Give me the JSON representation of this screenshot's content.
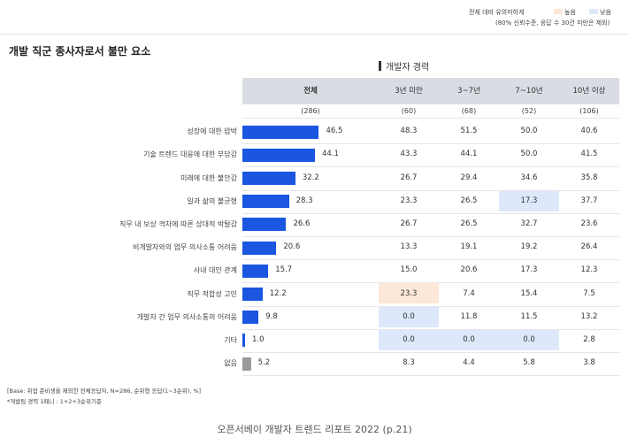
{
  "legend": {
    "prefix": "전체 대비 유의미하게",
    "high_label": "높음",
    "low_label": "낮음",
    "note": "(80% 신뢰수준, 응답 수 30건 미만은 제외)",
    "high_color": "#fde7d8",
    "low_color": "#dde8fb"
  },
  "title": "개발 직군 종사자로서 불만 요소",
  "group_label": "개발자 경력",
  "footnotes": [
    "[Base: 취업 준비생을 제외한 전체응답자, N=286, 순위형 응답(1~3순위), %]",
    "*개발팀 경력 1패니 : 1+2+3순위기준"
  ],
  "source": "오픈서베이 개발자 트렌드 리포트 2022 (p.21)",
  "chart_data": {
    "type": "bar",
    "orientation": "horizontal",
    "bar_color": "#1a56e0",
    "other_bar_color": "#9a9a9a",
    "columns": [
      {
        "label": "전체",
        "n": "(286)"
      },
      {
        "label": "3년 미만",
        "n": "(60)"
      },
      {
        "label": "3~7년",
        "n": "(68)"
      },
      {
        "label": "7~10년",
        "n": "(52)"
      },
      {
        "label": "10년 이상",
        "n": "(106)"
      }
    ],
    "categories": [
      "성장에 대한 압박",
      "기술 트렌드 대응에 대한 부담감",
      "미래에 대한 불안감",
      "일과 삶의 불균형",
      "직무 내 보상 격차에 따른 상대적 박탈감",
      "비개발자와의 업무 의사소통 어려움",
      "사내 대인 관계",
      "직무 적합성 고민",
      "개발자 간 업무 의사소통의 어려움",
      "기타",
      "없음"
    ],
    "total": [
      46.5,
      44.1,
      32.2,
      28.3,
      26.6,
      20.6,
      15.7,
      12.2,
      9.8,
      1.0,
      5.2
    ],
    "total_labels": [
      "46.5",
      "44.1",
      "32.2",
      "28.3",
      "26.6",
      "20.6",
      "15.7",
      "12.2",
      "9.8",
      "1.0",
      "5.2"
    ],
    "series": [
      {
        "name": "3년 미만",
        "values": [
          "48.3",
          "43.3",
          "26.7",
          "23.3",
          "26.7",
          "13.3",
          "15.0",
          "23.3",
          "0.0",
          "0.0",
          "8.3"
        ]
      },
      {
        "name": "3~7년",
        "values": [
          "51.5",
          "44.1",
          "29.4",
          "26.5",
          "26.5",
          "19.1",
          "20.6",
          "7.4",
          "11.8",
          "0.0",
          "4.4"
        ]
      },
      {
        "name": "7~10년",
        "values": [
          "50.0",
          "50.0",
          "34.6",
          "17.3",
          "32.7",
          "19.2",
          "17.3",
          "15.4",
          "11.5",
          "0.0",
          "5.8"
        ]
      },
      {
        "name": "10년 이상",
        "values": [
          "40.6",
          "41.5",
          "35.8",
          "37.7",
          "23.6",
          "26.4",
          "12.3",
          "7.5",
          "13.2",
          "2.8",
          "3.8"
        ]
      }
    ],
    "highlights": [
      {
        "row": 3,
        "col": 2,
        "significance": "low"
      },
      {
        "row": 7,
        "col": 0,
        "significance": "high"
      },
      {
        "row": 8,
        "col": 0,
        "significance": "low"
      },
      {
        "row": 9,
        "col": 0,
        "significance": "low"
      },
      {
        "row": 9,
        "col": 1,
        "significance": "low"
      },
      {
        "row": 9,
        "col": 2,
        "significance": "low"
      }
    ]
  }
}
